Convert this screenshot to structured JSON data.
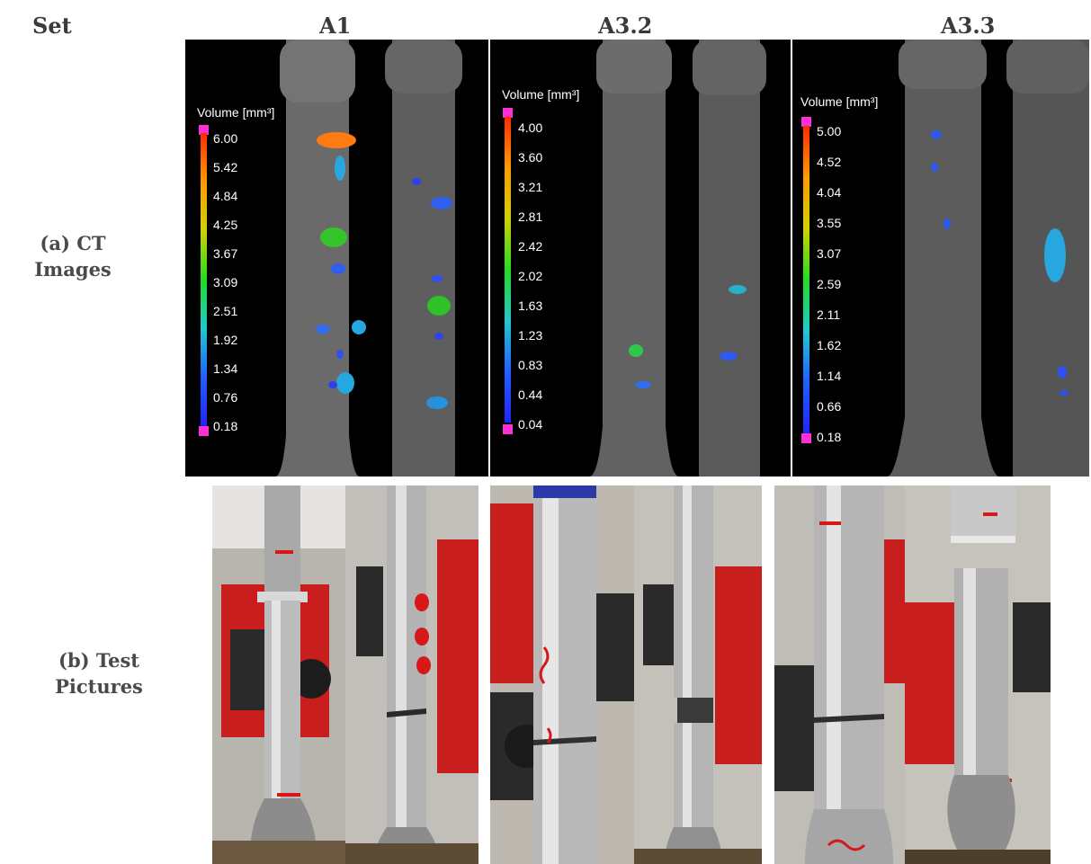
{
  "header": {
    "set_label": "Set",
    "columns": [
      "A1",
      "A3.2",
      "A3.3"
    ]
  },
  "rows": {
    "ct": [
      "(a) CT",
      "Images"
    ],
    "test": [
      "(b) Test",
      "Pictures"
    ]
  },
  "ct_panels": [
    {
      "scale_title": "Volume [mm³]",
      "ticks": [
        "6.00",
        "5.42",
        "4.84",
        "4.25",
        "3.67",
        "3.09",
        "2.51",
        "1.92",
        "1.34",
        "0.76",
        "0.18"
      ]
    },
    {
      "scale_title": "Volume [mm³]",
      "ticks": [
        "4.00",
        "3.60",
        "3.21",
        "2.81",
        "2.42",
        "2.02",
        "1.63",
        "1.23",
        "0.83",
        "0.44",
        "0.04"
      ]
    },
    {
      "scale_title": "Volume [mm³]",
      "ticks": [
        "5.00",
        "4.52",
        "4.04",
        "3.55",
        "3.07",
        "2.59",
        "2.11",
        "1.62",
        "1.14",
        "0.66",
        "0.18"
      ]
    }
  ],
  "colors": {
    "scale_top": "#ff2a00",
    "scale_mid": "#22dd22",
    "scale_bottom": "#2222ff",
    "scale_caps": "#ff2fd6",
    "specimen_gray": "#6e6e6e",
    "marker_red": "#d81818",
    "fixture_red": "#d01f1f"
  }
}
